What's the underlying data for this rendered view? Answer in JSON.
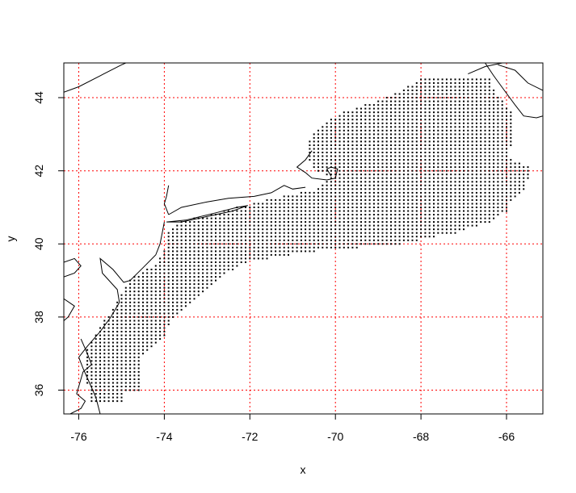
{
  "chart_data": {
    "type": "scatter",
    "title": "",
    "xlabel": "x",
    "ylabel": "y",
    "xlim": [
      -76.35,
      -65.15
    ],
    "ylim": [
      35.35,
      44.95
    ],
    "x_ticks": [
      -76,
      -74,
      -72,
      -70,
      -68,
      -66
    ],
    "y_ticks": [
      36,
      38,
      40,
      42,
      44
    ],
    "x_tick_labels": [
      "-76",
      "-74",
      "-72",
      "-70",
      "-68",
      "-66"
    ],
    "y_tick_labels": [
      "36",
      "38",
      "40",
      "42",
      "44"
    ],
    "grid": true,
    "grid_color": "#ff0000",
    "point_color": "#000000",
    "coast_color": "#000000",
    "point_spacing_deg": 0.1,
    "grid_rows": [
      {
        "y": 35.7,
        "x0": -75.7,
        "x1": -75.0
      },
      {
        "y": 35.8,
        "x0": -75.7,
        "x1": -75.0
      },
      {
        "y": 35.9,
        "x0": -75.7,
        "x1": -75.0
      },
      {
        "y": 36.0,
        "x0": -75.7,
        "x1": -74.6
      },
      {
        "y": 36.2,
        "x0": -75.8,
        "x1": -74.6
      },
      {
        "y": 36.5,
        "x0": -75.8,
        "x1": -74.6
      },
      {
        "y": 37.0,
        "x0": -75.8,
        "x1": -74.5
      },
      {
        "y": 37.5,
        "x0": -75.6,
        "x1": -74.0
      },
      {
        "y": 38.0,
        "x0": -75.3,
        "x1": -73.8
      },
      {
        "y": 38.5,
        "x0": -75.0,
        "x1": -73.3
      },
      {
        "y": 39.0,
        "x0": -74.8,
        "x1": -72.8
      },
      {
        "y": 39.5,
        "x0": -74.1,
        "x1": -72.1
      },
      {
        "y": 39.8,
        "x0": -74.0,
        "x1": -70.5
      },
      {
        "y": 40.0,
        "x0": -73.9,
        "x1": -68.5
      },
      {
        "y": 40.3,
        "x0": -73.9,
        "x1": -67.2
      },
      {
        "y": 40.6,
        "x0": -73.6,
        "x1": -66.4
      },
      {
        "y": 40.9,
        "x0": -72.6,
        "x1": -66.0
      },
      {
        "y": 41.2,
        "x0": -71.6,
        "x1": -65.9
      },
      {
        "y": 41.5,
        "x0": -70.4,
        "x1": -65.6
      },
      {
        "y": 41.8,
        "x0": -70.1,
        "x1": -65.5
      },
      {
        "y": 42.1,
        "x0": -70.5,
        "x1": -65.5
      },
      {
        "y": 42.4,
        "x0": -70.6,
        "x1": -66.0
      },
      {
        "y": 42.7,
        "x0": -70.6,
        "x1": -65.9
      },
      {
        "y": 43.0,
        "x0": -70.5,
        "x1": -65.9
      },
      {
        "y": 43.3,
        "x0": -70.2,
        "x1": -65.9
      },
      {
        "y": 43.6,
        "x0": -69.8,
        "x1": -65.9
      },
      {
        "y": 43.9,
        "x0": -69.0,
        "x1": -66.1
      },
      {
        "y": 44.2,
        "x0": -68.4,
        "x1": -66.3
      },
      {
        "y": 44.5,
        "x0": -68.0,
        "x1": -66.4
      }
    ],
    "coastlines": [
      [
        [
          -76.35,
          44.15
        ],
        [
          -76.0,
          44.3
        ],
        [
          -75.5,
          44.6
        ],
        [
          -75.0,
          44.9
        ],
        [
          -74.9,
          44.95
        ]
      ],
      [
        [
          -70.55,
          42.55
        ],
        [
          -70.7,
          42.3
        ],
        [
          -70.9,
          42.1
        ],
        [
          -70.7,
          41.95
        ],
        [
          -70.55,
          41.8
        ],
        [
          -70.2,
          41.75
        ],
        [
          -70.0,
          41.8
        ],
        [
          -69.95,
          42.05
        ],
        [
          -70.1,
          42.1
        ],
        [
          -70.2,
          42.05
        ],
        [
          -70.1,
          41.85
        ]
      ],
      [
        [
          -70.7,
          41.55
        ],
        [
          -71.0,
          41.5
        ],
        [
          -71.2,
          41.6
        ],
        [
          -71.5,
          41.4
        ],
        [
          -71.9,
          41.3
        ],
        [
          -72.5,
          41.25
        ],
        [
          -73.0,
          41.15
        ],
        [
          -73.6,
          41.0
        ],
        [
          -73.9,
          40.8
        ]
      ],
      [
        [
          -73.95,
          40.6
        ],
        [
          -73.5,
          40.65
        ],
        [
          -72.8,
          40.85
        ],
        [
          -72.3,
          41.0
        ],
        [
          -72.05,
          41.05
        ],
        [
          -72.4,
          40.9
        ],
        [
          -73.0,
          40.75
        ],
        [
          -73.6,
          40.6
        ],
        [
          -73.95,
          40.6
        ]
      ],
      [
        [
          -73.9,
          40.8
        ],
        [
          -74.0,
          41.1
        ],
        [
          -73.95,
          41.3
        ],
        [
          -73.9,
          41.6
        ]
      ],
      [
        [
          -74.0,
          40.6
        ],
        [
          -74.05,
          40.3
        ],
        [
          -74.1,
          40.0
        ],
        [
          -74.2,
          39.7
        ],
        [
          -74.5,
          39.35
        ],
        [
          -74.8,
          39.0
        ],
        [
          -74.95,
          38.95
        ],
        [
          -75.2,
          39.3
        ],
        [
          -75.5,
          39.6
        ],
        [
          -75.45,
          39.2
        ],
        [
          -75.1,
          38.75
        ],
        [
          -75.05,
          38.4
        ],
        [
          -75.25,
          38.0
        ],
        [
          -75.5,
          37.6
        ],
        [
          -75.8,
          37.2
        ],
        [
          -76.0,
          36.9
        ]
      ],
      [
        [
          -76.0,
          36.9
        ],
        [
          -75.9,
          36.6
        ],
        [
          -75.75,
          36.2
        ],
        [
          -75.6,
          35.8
        ],
        [
          -75.5,
          35.35
        ]
      ],
      [
        [
          -76.35,
          39.5
        ],
        [
          -76.1,
          39.6
        ],
        [
          -75.95,
          39.4
        ],
        [
          -76.1,
          39.2
        ],
        [
          -76.35,
          39.1
        ]
      ],
      [
        [
          -76.35,
          38.5
        ],
        [
          -76.1,
          38.3
        ],
        [
          -76.25,
          38.0
        ],
        [
          -76.35,
          37.9
        ]
      ],
      [
        [
          -75.95,
          37.4
        ],
        [
          -75.8,
          37.0
        ],
        [
          -75.7,
          36.7
        ],
        [
          -75.9,
          36.5
        ],
        [
          -76.0,
          36.1
        ],
        [
          -76.05,
          35.9
        ],
        [
          -75.85,
          35.7
        ],
        [
          -75.95,
          35.5
        ],
        [
          -76.2,
          35.35
        ]
      ],
      [
        [
          -66.9,
          44.65
        ],
        [
          -66.5,
          44.85
        ],
        [
          -66.1,
          44.95
        ]
      ],
      [
        [
          -66.2,
          44.9
        ],
        [
          -65.8,
          44.75
        ],
        [
          -65.5,
          44.4
        ],
        [
          -65.15,
          44.2
        ]
      ],
      [
        [
          -66.5,
          44.95
        ],
        [
          -66.3,
          44.6
        ],
        [
          -66.05,
          44.2
        ],
        [
          -65.8,
          43.8
        ],
        [
          -65.6,
          43.5
        ],
        [
          -65.3,
          43.45
        ],
        [
          -65.15,
          43.5
        ]
      ]
    ]
  }
}
